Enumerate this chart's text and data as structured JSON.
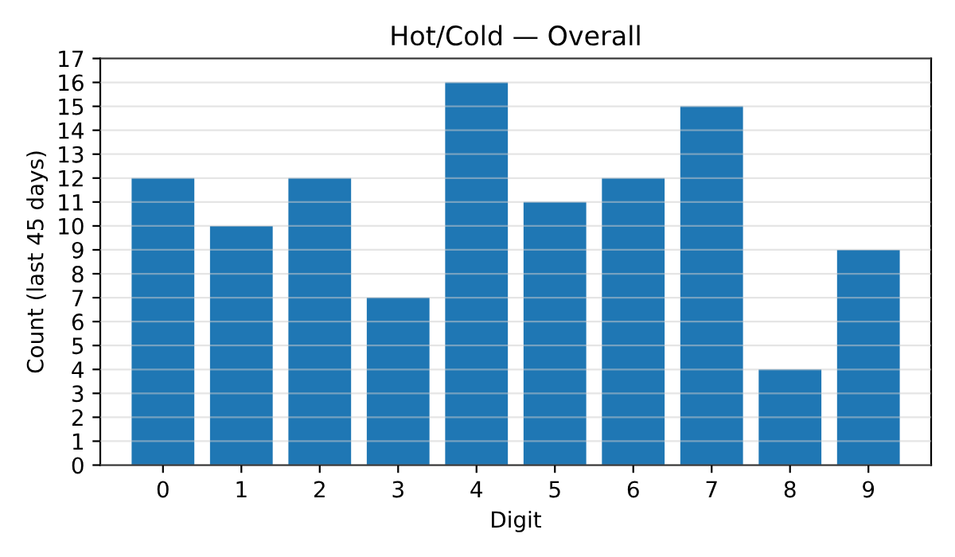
{
  "chart_data": {
    "type": "bar",
    "title": "Hot/Cold — Overall",
    "xlabel": "Digit",
    "ylabel": "Count (last 45 days)",
    "categories": [
      "0",
      "1",
      "2",
      "3",
      "4",
      "5",
      "6",
      "7",
      "8",
      "9"
    ],
    "values": [
      12,
      10,
      12,
      7,
      16,
      11,
      12,
      15,
      4,
      9
    ],
    "color": "#1f77b4",
    "ylim": [
      0,
      17
    ],
    "yticks": [
      0,
      1,
      2,
      3,
      4,
      5,
      6,
      7,
      8,
      9,
      10,
      11,
      12,
      13,
      14,
      15,
      16,
      17
    ],
    "grid": "y"
  }
}
